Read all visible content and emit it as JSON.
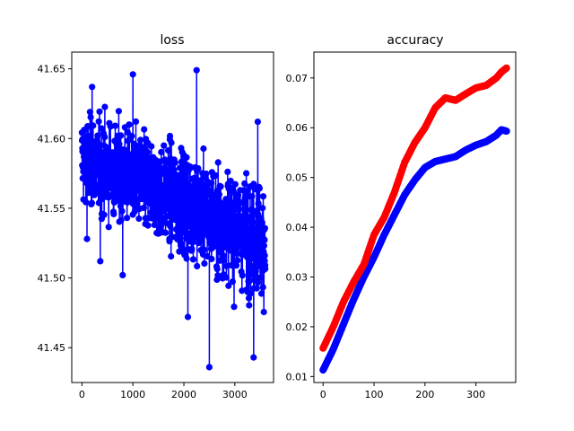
{
  "chart_data": [
    {
      "type": "line",
      "title": "loss",
      "xlabel": "",
      "ylabel": "",
      "xlim": [
        -200,
        3760
      ],
      "ylim": [
        41.425,
        41.662
      ],
      "x_ticks": [
        "0",
        "1000",
        "2000",
        "3000"
      ],
      "y_ticks": [
        "41.45",
        "41.50",
        "41.55",
        "41.60",
        "41.65"
      ],
      "grid": false,
      "marker": "o",
      "series": [
        {
          "color": "#0000ff",
          "n_points": 3600,
          "trend_x": [
            0,
            500,
            1000,
            1500,
            2000,
            2500,
            3000,
            3500,
            3600
          ],
          "trend_mean": [
            41.585,
            41.578,
            41.572,
            41.562,
            41.555,
            41.545,
            41.535,
            41.528,
            41.527
          ],
          "trend_spread": [
            0.045,
            0.05,
            0.05,
            0.05,
            0.055,
            0.055,
            0.055,
            0.06,
            0.06
          ],
          "outliers": [
            {
              "x": 100,
              "y": 41.528
            },
            {
              "x": 200,
              "y": 41.637
            },
            {
              "x": 360,
              "y": 41.512
            },
            {
              "x": 800,
              "y": 41.502
            },
            {
              "x": 1000,
              "y": 41.646
            },
            {
              "x": 2250,
              "y": 41.649
            },
            {
              "x": 2080,
              "y": 41.472
            },
            {
              "x": 2500,
              "y": 41.436
            },
            {
              "x": 3370,
              "y": 41.443
            },
            {
              "x": 3450,
              "y": 41.612
            }
          ]
        }
      ]
    },
    {
      "type": "line",
      "title": "accuracy",
      "xlabel": "",
      "ylabel": "",
      "xlim": [
        -18,
        378
      ],
      "ylim": [
        0.0088,
        0.0752
      ],
      "x_ticks": [
        "0",
        "100",
        "200",
        "300"
      ],
      "y_ticks": [
        "0.01",
        "0.02",
        "0.03",
        "0.04",
        "0.05",
        "0.06",
        "0.07"
      ],
      "grid": false,
      "marker": "o",
      "series": [
        {
          "color": "#0000ff",
          "x": [
            0,
            20,
            40,
            60,
            80,
            100,
            120,
            140,
            160,
            180,
            200,
            220,
            240,
            260,
            280,
            300,
            320,
            340,
            350,
            360
          ],
          "y": [
            0.0113,
            0.0155,
            0.0205,
            0.0255,
            0.03,
            0.034,
            0.0385,
            0.0425,
            0.0465,
            0.0495,
            0.052,
            0.0532,
            0.0537,
            0.0542,
            0.0555,
            0.0565,
            0.0572,
            0.0585,
            0.0596,
            0.0593
          ]
        },
        {
          "color": "#ff0000",
          "x": [
            0,
            20,
            40,
            60,
            80,
            100,
            120,
            140,
            160,
            180,
            200,
            220,
            240,
            260,
            280,
            300,
            320,
            340,
            350,
            360
          ],
          "y": [
            0.0157,
            0.02,
            0.025,
            0.029,
            0.0325,
            0.0385,
            0.042,
            0.047,
            0.053,
            0.057,
            0.06,
            0.064,
            0.066,
            0.0655,
            0.0668,
            0.068,
            0.0685,
            0.07,
            0.0712,
            0.072
          ]
        }
      ]
    }
  ]
}
